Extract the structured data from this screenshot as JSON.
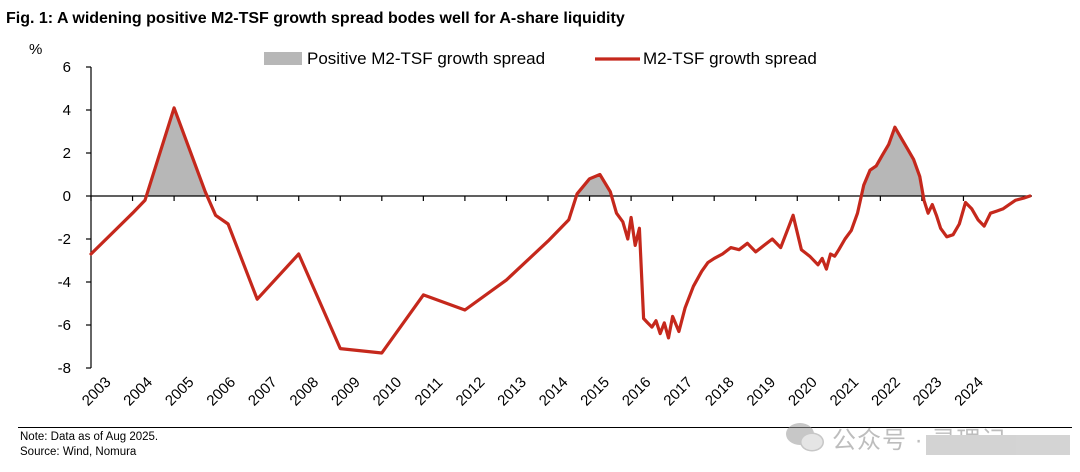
{
  "figure": {
    "title": "Fig. 1: A widening positive M2-TSF growth spread bodes well for A-share liquidity",
    "unit": "%",
    "note": "Note: Data as of Aug 2025.",
    "source": "Source: Wind, Nomura",
    "watermark": "公众号 · 灵理记"
  },
  "colors": {
    "line": "#c5281c",
    "fill": "#b7b7b7",
    "axis": "#000000"
  },
  "chart_data": {
    "type": "line",
    "title": "Fig. 1: A widening positive M2-TSF growth spread bodes well for A-share liquidity",
    "ylabel": "%",
    "ylim": [
      -8,
      6
    ],
    "xlim": [
      2003.0,
      2025.65
    ],
    "yticks": [
      6,
      4,
      2,
      0,
      -2,
      -4,
      -6,
      -8
    ],
    "xticks": [
      "2003",
      "2004",
      "2005",
      "2006",
      "2007",
      "2008",
      "2009",
      "2010",
      "2011",
      "2012",
      "2013",
      "2014",
      "2015",
      "2016",
      "2017",
      "2018",
      "2019",
      "2020",
      "2021",
      "2022",
      "2023",
      "2024"
    ],
    "legend": [
      {
        "label": "Positive M2-TSF growth spread",
        "kind": "area"
      },
      {
        "label": "M2-TSF growth spread",
        "kind": "line"
      }
    ],
    "legend_position": "top-center",
    "series": [
      {
        "name": "M2-TSF growth spread",
        "x": [
          2003.0,
          2004.0,
          2004.3,
          2005.0,
          2005.75,
          2006.0,
          2006.3,
          2007.0,
          2008.0,
          2009.0,
          2010.0,
          2011.0,
          2012.0,
          2013.0,
          2014.0,
          2014.5,
          2014.7,
          2015.0,
          2015.25,
          2015.5,
          2015.65,
          2015.8,
          2015.92,
          2016.0,
          2016.1,
          2016.2,
          2016.3,
          2016.4,
          2016.5,
          2016.6,
          2016.7,
          2016.8,
          2016.9,
          2017.0,
          2017.15,
          2017.3,
          2017.5,
          2017.7,
          2017.85,
          2018.0,
          2018.2,
          2018.4,
          2018.6,
          2018.8,
          2019.0,
          2019.2,
          2019.4,
          2019.6,
          2019.8,
          2019.9,
          2020.1,
          2020.3,
          2020.5,
          2020.6,
          2020.7,
          2020.8,
          2020.9,
          2021.0,
          2021.15,
          2021.3,
          2021.45,
          2021.6,
          2021.75,
          2021.9,
          2022.05,
          2022.2,
          2022.35,
          2022.5,
          2022.65,
          2022.8,
          2022.95,
          2023.05,
          2023.15,
          2023.25,
          2023.35,
          2023.45,
          2023.6,
          2023.75,
          2023.9,
          2024.05,
          2024.2,
          2024.35,
          2024.5,
          2024.65,
          2024.8,
          2024.95,
          2025.1,
          2025.25,
          2025.45,
          2025.6
        ],
        "values": [
          -2.7,
          -0.8,
          -0.2,
          4.1,
          0.2,
          -0.9,
          -1.3,
          -4.8,
          -2.7,
          -7.1,
          -7.3,
          -4.6,
          -5.3,
          -3.9,
          -2.1,
          -1.1,
          0.1,
          0.8,
          1.0,
          0.2,
          -0.8,
          -1.2,
          -2.0,
          -1.0,
          -2.3,
          -1.5,
          -5.7,
          -5.9,
          -6.1,
          -5.8,
          -6.4,
          -5.9,
          -6.6,
          -5.6,
          -6.3,
          -5.2,
          -4.2,
          -3.5,
          -3.1,
          -2.9,
          -2.7,
          -2.4,
          -2.5,
          -2.2,
          -2.6,
          -2.3,
          -2.0,
          -2.4,
          -1.4,
          -0.9,
          -2.5,
          -2.8,
          -3.2,
          -2.9,
          -3.4,
          -2.7,
          -2.8,
          -2.5,
          -2.0,
          -1.6,
          -0.8,
          0.5,
          1.2,
          1.4,
          1.9,
          2.4,
          3.2,
          2.7,
          2.2,
          1.7,
          0.9,
          -0.2,
          -0.8,
          -0.4,
          -0.9,
          -1.5,
          -1.9,
          -1.8,
          -1.3,
          -0.3,
          -0.6,
          -1.1,
          -1.4,
          -0.8,
          -0.7,
          -0.6,
          -0.4,
          -0.2,
          -0.1,
          0.0
        ]
      }
    ]
  }
}
